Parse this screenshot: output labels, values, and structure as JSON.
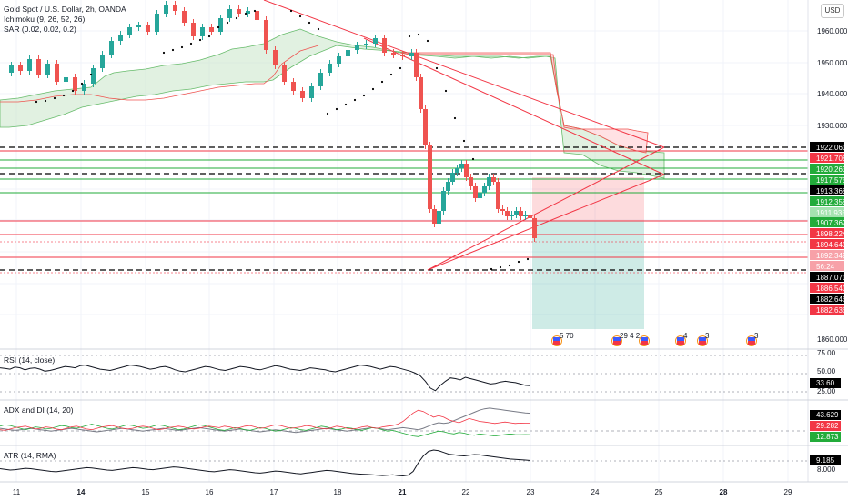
{
  "header": {
    "symbol_title": "Gold Spot / U.S. Dollar, 2h, OANDA",
    "indicator_ichimoku": "Ichimoku (9, 26, 52, 26)",
    "indicator_sar": "SAR (0.02, 0.02, 0.2)",
    "currency_button": "USD"
  },
  "price_axis": {
    "ticks": [
      "1960.000",
      "1950.000",
      "1940.000",
      "1930.000",
      "1860.000"
    ]
  },
  "price_labels": [
    {
      "text": "1922.061",
      "bg": "#000000",
      "fg": "#ffffff"
    },
    {
      "text": "1921.708",
      "bg": "#f23645",
      "fg": "#ffffff"
    },
    {
      "text": "1920.263",
      "bg": "#22ab3a",
      "fg": "#ffffff"
    },
    {
      "text": "1917.575",
      "bg": "#22ab3a",
      "fg": "#ffffff"
    },
    {
      "text": "1913.368",
      "bg": "#000000",
      "fg": "#ffffff"
    },
    {
      "text": "1912.358",
      "bg": "#22ab3a",
      "fg": "#ffffff"
    },
    {
      "text": "1911.935",
      "bg": "#a5e3b0",
      "fg": "#ffffff"
    },
    {
      "text": "1907.362",
      "bg": "#22ab3a",
      "fg": "#ffffff"
    },
    {
      "text": "1898.224",
      "bg": "#f23645",
      "fg": "#ffffff"
    },
    {
      "text": "1894.641",
      "bg": "#f23645",
      "fg": "#ffffff"
    },
    {
      "text": "1892.349",
      "bg": "#f7a1a8",
      "fg": "#ffffff"
    },
    {
      "text": "56:24",
      "bg": "#f7a1a8",
      "fg": "#ffffff"
    },
    {
      "text": "1887.071",
      "bg": "#000000",
      "fg": "#ffffff"
    },
    {
      "text": "1886.541",
      "bg": "#f23645",
      "fg": "#ffffff"
    },
    {
      "text": "1882.646",
      "bg": "#000000",
      "fg": "#ffffff"
    },
    {
      "text": "1882.636",
      "bg": "#f23645",
      "fg": "#ffffff"
    }
  ],
  "events": [
    {
      "text": "5 70"
    },
    {
      "text": "29 4 2"
    },
    {
      "text": ""
    },
    {
      "text": "4"
    },
    {
      "text": "3"
    },
    {
      "text": "3"
    }
  ],
  "rsi": {
    "title": "RSI (14, close)",
    "ticks": [
      "75.00",
      "50.00",
      "25.00"
    ],
    "value": "33.60",
    "value_bg": "#000000",
    "values": [
      60,
      59,
      58,
      61,
      60,
      57,
      59,
      60,
      58,
      55,
      56,
      58,
      60,
      62,
      61,
      60,
      63,
      64,
      62,
      60,
      58,
      57,
      56,
      58,
      60,
      62,
      64,
      63,
      62,
      60,
      58,
      59,
      61,
      62,
      60,
      57,
      55,
      54,
      56,
      58,
      60,
      62,
      61,
      59,
      57,
      56,
      58,
      60,
      62,
      61,
      60,
      58,
      57,
      59,
      61,
      63,
      62,
      60,
      58,
      57,
      56,
      58,
      60,
      59,
      58,
      57,
      55,
      54,
      56,
      58,
      60,
      62,
      64,
      63,
      62,
      60,
      58,
      60,
      62,
      61,
      59,
      57,
      55,
      52,
      48,
      40,
      30,
      26,
      34,
      40,
      45,
      44,
      42,
      46,
      44,
      42,
      40,
      38,
      36,
      37,
      39,
      40,
      39,
      38,
      36,
      34,
      33.6
    ]
  },
  "adx": {
    "title": "ADX and DI (14, 20)",
    "values_label": [
      "43.629",
      "29.282",
      "12.873"
    ],
    "colors": {
      "adx": "#787b86",
      "plus_di": "#22ab3a",
      "minus_di": "#f23645"
    },
    "adx_values": [
      22,
      21,
      20,
      19,
      20,
      21,
      22,
      21,
      20,
      19,
      18,
      19,
      20,
      21,
      22,
      21,
      20,
      19,
      18,
      17,
      18,
      19,
      20,
      21,
      22,
      21,
      20,
      19,
      18,
      19,
      20,
      21,
      22,
      21,
      20,
      19,
      20,
      21,
      22,
      23,
      22,
      21,
      20,
      19,
      18,
      19,
      20,
      21,
      20,
      19,
      18,
      17,
      18,
      19,
      20,
      19,
      18,
      17,
      16,
      17,
      18,
      19,
      20,
      21,
      22,
      21,
      20,
      19,
      18,
      19,
      20,
      21,
      22,
      23,
      22,
      21,
      20,
      21,
      22,
      23,
      22,
      21,
      20,
      22,
      25,
      28,
      30,
      29,
      30,
      33,
      36,
      39,
      42,
      45,
      48,
      50,
      51,
      50,
      49,
      48,
      47,
      46,
      45,
      44,
      43.6
    ],
    "plus_di_values": [
      25,
      27,
      26,
      24,
      22,
      20,
      22,
      24,
      23,
      21,
      22,
      24,
      26,
      25,
      23,
      22,
      24,
      26,
      28,
      26,
      24,
      22,
      21,
      23,
      25,
      27,
      26,
      24,
      22,
      23,
      25,
      27,
      26,
      24,
      22,
      20,
      21,
      23,
      25,
      27,
      26,
      24,
      22,
      20,
      19,
      21,
      23,
      22,
      20,
      19,
      21,
      23,
      22,
      20,
      18,
      19,
      21,
      23,
      22,
      20,
      19,
      21,
      23,
      25,
      24,
      22,
      20,
      21,
      23,
      22,
      20,
      19,
      21,
      23,
      22,
      20,
      18,
      19,
      17,
      15,
      13,
      11,
      10,
      12,
      14,
      16,
      18,
      17,
      15,
      14,
      16,
      15,
      13,
      12,
      14,
      13,
      12,
      11,
      12,
      13,
      14,
      13,
      12.9,
      13,
      12.9
    ],
    "minus_di_values": [
      20,
      19,
      21,
      23,
      24,
      25,
      23,
      21,
      22,
      24,
      23,
      21,
      20,
      22,
      24,
      25,
      23,
      21,
      20,
      22,
      24,
      25,
      26,
      24,
      22,
      21,
      22,
      24,
      25,
      24,
      22,
      20,
      21,
      23,
      24,
      25,
      24,
      22,
      21,
      22,
      24,
      25,
      24,
      23,
      25,
      24,
      22,
      23,
      25,
      26,
      24,
      22,
      23,
      25,
      27,
      26,
      24,
      22,
      23,
      24,
      26,
      25,
      23,
      22,
      21,
      23,
      25,
      24,
      22,
      21,
      22,
      24,
      25,
      23,
      22,
      24,
      25,
      26,
      28,
      32,
      38,
      44,
      48,
      46,
      42,
      38,
      40,
      38,
      34,
      32,
      30,
      33,
      36,
      34,
      32,
      31,
      30,
      29,
      30,
      31,
      30,
      29,
      29.5,
      29.3,
      29.3
    ]
  },
  "atr": {
    "title": "ATR (14, RMA)",
    "value": "9.185",
    "value_bg": "#000000",
    "ticks": [
      "8.000"
    ],
    "values": [
      6.8,
      6.6,
      6.4,
      6.5,
      6.7,
      6.9,
      6.8,
      6.6,
      6.4,
      6.2,
      6.0,
      5.9,
      6.1,
      6.3,
      6.5,
      6.7,
      6.9,
      7.1,
      7.0,
      6.8,
      6.6,
      6.4,
      6.3,
      6.5,
      6.7,
      6.9,
      7.1,
      7.0,
      6.8,
      6.6,
      6.5,
      6.7,
      6.9,
      7.1,
      7.3,
      7.2,
      7.0,
      6.8,
      6.6,
      6.4,
      6.2,
      6.0,
      5.9,
      6.1,
      6.3,
      6.5,
      6.4,
      6.2,
      6.0,
      5.8,
      5.6,
      5.5,
      5.7,
      5.9,
      6.1,
      6.0,
      5.8,
      5.6,
      5.4,
      5.3,
      5.5,
      5.7,
      5.9,
      6.1,
      6.3,
      6.2,
      6.0,
      5.8,
      5.6,
      5.4,
      5.3,
      5.2,
      5.1,
      5.0,
      4.9,
      4.8,
      4.9,
      5.0,
      4.8,
      4.7,
      4.9,
      6.0,
      8.5,
      10.5,
      11.8,
      12.2,
      12.0,
      11.5,
      11.0,
      10.8,
      10.6,
      10.5,
      10.7,
      10.9,
      10.8,
      10.6,
      10.4,
      10.2,
      10.0,
      9.8,
      9.6,
      9.5,
      9.4,
      9.3,
      9.185
    ]
  },
  "time_axis": {
    "labels": [
      "11",
      "14",
      "15",
      "16",
      "17",
      "18",
      "21",
      "22",
      "23",
      "24",
      "25",
      "28",
      "29"
    ],
    "bold": [
      false,
      true,
      false,
      false,
      false,
      false,
      true,
      false,
      false,
      false,
      false,
      true,
      false
    ]
  },
  "colors": {
    "bull": "#26a69a",
    "bear": "#ef5350",
    "cloud_green": "#a5d6a7",
    "cloud_red": "#ef9a9a"
  }
}
